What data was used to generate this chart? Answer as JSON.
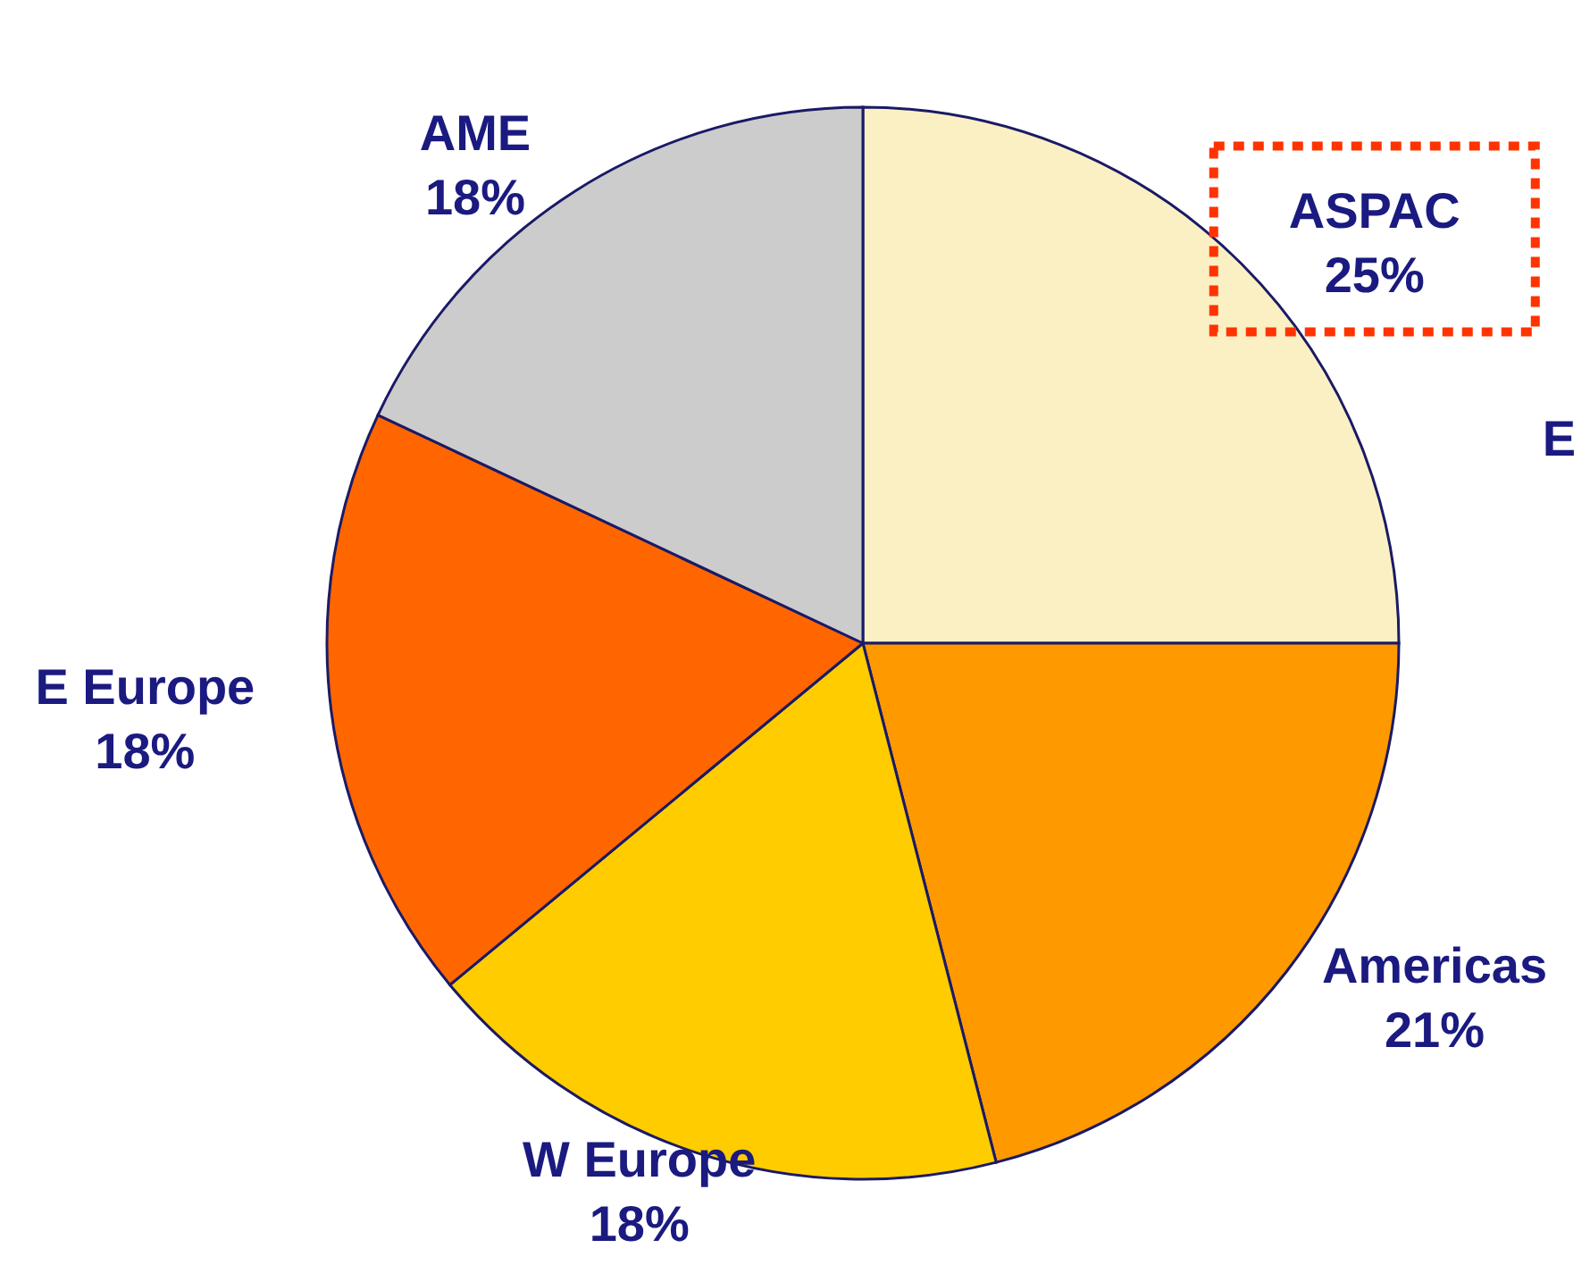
{
  "chart_data": {
    "type": "pie",
    "categories": [
      "ASPAC",
      "Americas",
      "W Europe",
      "E Europe",
      "AME"
    ],
    "values": [
      25,
      21,
      18,
      18,
      18
    ],
    "value_labels": [
      "25%",
      "21%",
      "18%",
      "18%",
      "18%"
    ],
    "colors": [
      "#faf0c4",
      "#ff9900",
      "#ffcc00",
      "#ff6600",
      "#cccccc"
    ],
    "annotations": [
      "E"
    ]
  }
}
